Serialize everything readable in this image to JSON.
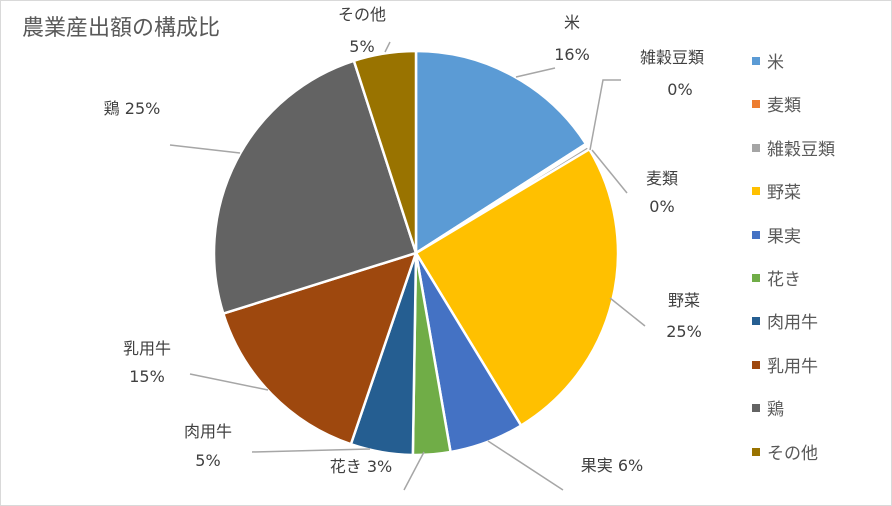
{
  "chart_data": {
    "type": "pie",
    "title": "農業産出額の構成比",
    "slices": [
      {
        "name": "米",
        "value": 16,
        "label_name": "米",
        "label_value": "16%",
        "color": "#5b9bd5"
      },
      {
        "name": "麦類",
        "value": 0.2,
        "label_name": "麦類",
        "label_value": "0%",
        "color": "#ed7d31"
      },
      {
        "name": "雑穀豆類",
        "value": 0.3,
        "label_name": "雑穀豆類",
        "label_value": "0%",
        "color": "#a5a5a5"
      },
      {
        "name": "野菜",
        "value": 25,
        "label_name": "野菜",
        "label_value": "25%",
        "color": "#ffc000"
      },
      {
        "name": "果実",
        "value": 6,
        "label_name": "果実",
        "label_value": "6%",
        "color": "#4472c4"
      },
      {
        "name": "花き",
        "value": 3,
        "label_name": "花き",
        "label_value": "3%",
        "color": "#70ad47"
      },
      {
        "name": "肉用牛",
        "value": 5,
        "label_name": "肉用牛",
        "label_value": "5%",
        "color": "#255e91"
      },
      {
        "name": "乳用牛",
        "value": 15,
        "label_name": "乳用牛",
        "label_value": "15%",
        "color": "#9e480e"
      },
      {
        "name": "鶏",
        "value": 25,
        "label_name": "鶏",
        "label_value": "25%",
        "color": "#636363"
      },
      {
        "name": "その他",
        "value": 5,
        "label_name": "その他",
        "label_value": "5%",
        "color": "#997300"
      }
    ],
    "legend": {
      "position": "right",
      "items": [
        {
          "label": "米",
          "color": "#5b9bd5"
        },
        {
          "label": "麦類",
          "color": "#ed7d31"
        },
        {
          "label": "雑穀豆類",
          "color": "#a5a5a5"
        },
        {
          "label": "野菜",
          "color": "#ffc000"
        },
        {
          "label": "果実",
          "color": "#4472c4"
        },
        {
          "label": "花き",
          "color": "#70ad47"
        },
        {
          "label": "肉用牛",
          "color": "#255e91"
        },
        {
          "label": "乳用牛",
          "color": "#9e480e"
        },
        {
          "label": "鶏",
          "color": "#636363"
        },
        {
          "label": "その他",
          "color": "#997300"
        }
      ]
    }
  }
}
